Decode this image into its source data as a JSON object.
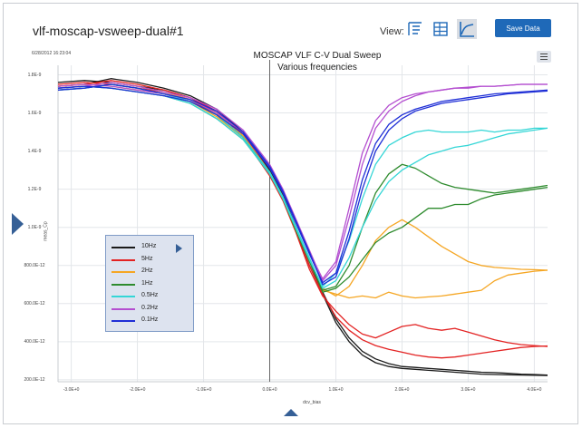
{
  "page": {
    "title": "vlf-moscap-vsweep-dual#1",
    "view_label": "View:",
    "save_label": "Save Data",
    "timestamp": "6/28/2012 16:23:04",
    "view_buttons": [
      {
        "icon": "chart-settings-icon",
        "active": false
      },
      {
        "icon": "table-view-icon",
        "active": false
      },
      {
        "icon": "graph-view-icon",
        "active": true
      }
    ],
    "menu_icon": "hamburger-menu-icon"
  },
  "chart_data": {
    "type": "line",
    "title": "MOSCAP VLF C-V Dual Sweep",
    "subtitle": "Various frequencies",
    "xlabel": "dcv_bias",
    "ylabel": "meas_Cp",
    "xlim": [
      -3.2,
      4.2
    ],
    "ylim": [
      1.9e-10,
      1.85e-09
    ],
    "x_ticks": [
      -3,
      -2,
      -1,
      0,
      1,
      2,
      3,
      4
    ],
    "x_tick_labels": [
      "-3.0E+0",
      "-2.0E+0",
      "-1.0E+0",
      "0.0E+0",
      "1.0E+0",
      "2.0E+0",
      "3.0E+0",
      "4.0E+0"
    ],
    "y_ticks": [
      2e-10,
      4e-10,
      6e-10,
      8e-10,
      1e-09,
      1.2e-09,
      1.4e-09,
      1.6e-09,
      1.8e-09
    ],
    "y_tick_labels": [
      "200.0E-12",
      "400.0E-12",
      "600.0E-12",
      "800.0E-12",
      "1.0E-9",
      "1.2E-9",
      "1.4E-9",
      "1.6E-9",
      "1.8E-9"
    ],
    "grid": true,
    "legend_position": "lower-left",
    "x": [
      -3.2,
      -2.8,
      -2.4,
      -2.0,
      -1.6,
      -1.2,
      -0.8,
      -0.4,
      0.0,
      0.2,
      0.4,
      0.6,
      0.8,
      1.0,
      1.2,
      1.4,
      1.6,
      1.8,
      2.0,
      2.2,
      2.4,
      2.6,
      2.8,
      3.0,
      3.2,
      3.4,
      3.6,
      3.8,
      4.0,
      4.2
    ],
    "series": [
      {
        "name": "10Hz",
        "color": "#1a1a1a",
        "forward": [
          1.76e-09,
          1.77e-09,
          1.76e-09,
          1.74e-09,
          1.72e-09,
          1.68e-09,
          1.6e-09,
          1.48e-09,
          1.28e-09,
          1.15e-09,
          9.8e-10,
          8e-10,
          6.5e-10,
          5e-10,
          4e-10,
          3.3e-10,
          2.9e-10,
          2.7e-10,
          2.6e-10,
          2.55e-10,
          2.5e-10,
          2.45e-10,
          2.4e-10,
          2.35e-10,
          2.3e-10,
          2.28e-10,
          2.26e-10,
          2.25e-10,
          2.24e-10,
          2.23e-10
        ],
        "reverse": [
          1.74e-09,
          1.75e-09,
          1.78e-09,
          1.76e-09,
          1.73e-09,
          1.69e-09,
          1.62e-09,
          1.5e-09,
          1.3e-09,
          1.17e-09,
          1e-09,
          8.2e-10,
          6.6e-10,
          5.2e-10,
          4.2e-10,
          3.5e-10,
          3.1e-10,
          2.85e-10,
          2.7e-10,
          2.65e-10,
          2.6e-10,
          2.55e-10,
          2.5e-10,
          2.45e-10,
          2.4e-10,
          2.38e-10,
          2.34e-10,
          2.3e-10,
          2.28e-10,
          2.25e-10
        ]
      },
      {
        "name": "5Hz",
        "color": "#e32222",
        "forward": [
          1.75e-09,
          1.76e-09,
          1.75e-09,
          1.73e-09,
          1.71e-09,
          1.67e-09,
          1.59e-09,
          1.47e-09,
          1.27e-09,
          1.14e-09,
          9.7e-10,
          7.8e-10,
          6.4e-10,
          5.6e-10,
          4.9e-10,
          4.4e-10,
          4.2e-10,
          4.5e-10,
          4.8e-10,
          4.9e-10,
          4.7e-10,
          4.6e-10,
          4.7e-10,
          4.5e-10,
          4.3e-10,
          4.1e-10,
          3.95e-10,
          3.85e-10,
          3.8e-10,
          3.75e-10
        ],
        "reverse": [
          1.74e-09,
          1.75e-09,
          1.77e-09,
          1.75e-09,
          1.72e-09,
          1.68e-09,
          1.61e-09,
          1.49e-09,
          1.29e-09,
          1.16e-09,
          9.9e-10,
          8e-10,
          6.5e-10,
          5.3e-10,
          4.6e-10,
          4.1e-10,
          3.8e-10,
          3.6e-10,
          3.45e-10,
          3.3e-10,
          3.2e-10,
          3.15e-10,
          3.2e-10,
          3.3e-10,
          3.4e-10,
          3.5e-10,
          3.6e-10,
          3.7e-10,
          3.75e-10,
          3.78e-10
        ]
      },
      {
        "name": "2Hz",
        "color": "#f5a623",
        "forward": [
          1.74e-09,
          1.75e-09,
          1.74e-09,
          1.72e-09,
          1.7e-09,
          1.66e-09,
          1.58e-09,
          1.47e-09,
          1.28e-09,
          1.15e-09,
          9.8e-10,
          8.2e-10,
          6.8e-10,
          6.4e-10,
          6.9e-10,
          8e-10,
          9.3e-10,
          1e-09,
          1.04e-09,
          1e-09,
          9.5e-10,
          9e-10,
          8.6e-10,
          8.2e-10,
          8e-10,
          7.9e-10,
          7.85e-10,
          7.8e-10,
          7.78e-10,
          7.75e-10
        ],
        "reverse": [
          1.73e-09,
          1.74e-09,
          1.76e-09,
          1.74e-09,
          1.71e-09,
          1.67e-09,
          1.6e-09,
          1.48e-09,
          1.29e-09,
          1.16e-09,
          9.9e-10,
          8.3e-10,
          6.7e-10,
          6.5e-10,
          6.3e-10,
          6.4e-10,
          6.3e-10,
          6.6e-10,
          6.4e-10,
          6.3e-10,
          6.35e-10,
          6.4e-10,
          6.5e-10,
          6.6e-10,
          6.7e-10,
          7.2e-10,
          7.5e-10,
          7.6e-10,
          7.7e-10,
          7.75e-10
        ]
      },
      {
        "name": "1Hz",
        "color": "#2e8b2e",
        "forward": [
          1.73e-09,
          1.74e-09,
          1.73e-09,
          1.71e-09,
          1.69e-09,
          1.65e-09,
          1.57e-09,
          1.46e-09,
          1.28e-09,
          1.15e-09,
          9.8e-10,
          8.2e-10,
          6.7e-10,
          6.9e-10,
          8e-10,
          1e-09,
          1.18e-09,
          1.28e-09,
          1.33e-09,
          1.31e-09,
          1.27e-09,
          1.23e-09,
          1.21e-09,
          1.2e-09,
          1.19e-09,
          1.18e-09,
          1.19e-09,
          1.2e-09,
          1.21e-09,
          1.22e-09
        ],
        "reverse": [
          1.72e-09,
          1.73e-09,
          1.75e-09,
          1.73e-09,
          1.7e-09,
          1.66e-09,
          1.59e-09,
          1.47e-09,
          1.29e-09,
          1.16e-09,
          9.9e-10,
          8.3e-10,
          6.6e-10,
          6.8e-10,
          7.4e-10,
          8.3e-10,
          9.2e-10,
          9.7e-10,
          1e-09,
          1.05e-09,
          1.1e-09,
          1.1e-09,
          1.12e-09,
          1.12e-09,
          1.15e-09,
          1.17e-09,
          1.18e-09,
          1.19e-09,
          1.2e-09,
          1.21e-09
        ]
      },
      {
        "name": "0.5Hz",
        "color": "#34d6d6",
        "forward": [
          1.73e-09,
          1.74e-09,
          1.73e-09,
          1.71e-09,
          1.69e-09,
          1.65e-09,
          1.57e-09,
          1.46e-09,
          1.28e-09,
          1.15e-09,
          9.9e-10,
          8.3e-10,
          6.9e-10,
          7.6e-10,
          9.3e-10,
          1.15e-09,
          1.33e-09,
          1.43e-09,
          1.47e-09,
          1.5e-09,
          1.51e-09,
          1.5e-09,
          1.5e-09,
          1.5e-09,
          1.51e-09,
          1.5e-09,
          1.51e-09,
          1.51e-09,
          1.52e-09,
          1.52e-09
        ],
        "reverse": [
          1.72e-09,
          1.73e-09,
          1.75e-09,
          1.73e-09,
          1.7e-09,
          1.66e-09,
          1.59e-09,
          1.47e-09,
          1.29e-09,
          1.16e-09,
          1e-09,
          8.4e-10,
          6.8e-10,
          7.2e-10,
          8.4e-10,
          1e-09,
          1.14e-09,
          1.24e-09,
          1.3e-09,
          1.34e-09,
          1.38e-09,
          1.4e-09,
          1.42e-09,
          1.43e-09,
          1.45e-09,
          1.47e-09,
          1.49e-09,
          1.5e-09,
          1.51e-09,
          1.52e-09
        ]
      },
      {
        "name": "0.2Hz",
        "color": "#b44fd0",
        "forward": [
          1.74e-09,
          1.75e-09,
          1.74e-09,
          1.72e-09,
          1.7e-09,
          1.67e-09,
          1.6e-09,
          1.5e-09,
          1.32e-09,
          1.19e-09,
          1.03e-09,
          8.7e-10,
          7.3e-10,
          8.2e-10,
          1.1e-09,
          1.39e-09,
          1.56e-09,
          1.64e-09,
          1.68e-09,
          1.7e-09,
          1.71e-09,
          1.72e-09,
          1.73e-09,
          1.73e-09,
          1.74e-09,
          1.74e-09,
          1.745e-09,
          1.75e-09,
          1.75e-09,
          1.75e-09
        ],
        "reverse": [
          1.73e-09,
          1.74e-09,
          1.76e-09,
          1.74e-09,
          1.71e-09,
          1.68e-09,
          1.62e-09,
          1.51e-09,
          1.33e-09,
          1.2e-09,
          1.04e-09,
          8.8e-10,
          7.2e-10,
          8e-10,
          1.05e-09,
          1.33e-09,
          1.52e-09,
          1.61e-09,
          1.66e-09,
          1.69e-09,
          1.71e-09,
          1.72e-09,
          1.73e-09,
          1.735e-09,
          1.74e-09,
          1.74e-09,
          1.745e-09,
          1.75e-09,
          1.75e-09,
          1.75e-09
        ]
      },
      {
        "name": "0.1Hz",
        "color": "#1f2fd6",
        "forward": [
          1.73e-09,
          1.74e-09,
          1.73e-09,
          1.71e-09,
          1.69e-09,
          1.66e-09,
          1.59e-09,
          1.49e-09,
          1.31e-09,
          1.18e-09,
          1.02e-09,
          8.6e-10,
          7.1e-10,
          7.6e-10,
          9.8e-10,
          1.25e-09,
          1.44e-09,
          1.54e-09,
          1.59e-09,
          1.62e-09,
          1.64e-09,
          1.66e-09,
          1.67e-09,
          1.68e-09,
          1.69e-09,
          1.7e-09,
          1.705e-09,
          1.71e-09,
          1.715e-09,
          1.72e-09
        ],
        "reverse": [
          1.72e-09,
          1.73e-09,
          1.75e-09,
          1.73e-09,
          1.7e-09,
          1.67e-09,
          1.61e-09,
          1.5e-09,
          1.32e-09,
          1.19e-09,
          1.03e-09,
          8.7e-10,
          7e-10,
          7.4e-10,
          9.4e-10,
          1.2e-09,
          1.4e-09,
          1.51e-09,
          1.57e-09,
          1.61e-09,
          1.63e-09,
          1.65e-09,
          1.66e-09,
          1.67e-09,
          1.68e-09,
          1.69e-09,
          1.7e-09,
          1.705e-09,
          1.71e-09,
          1.715e-09
        ]
      }
    ]
  }
}
